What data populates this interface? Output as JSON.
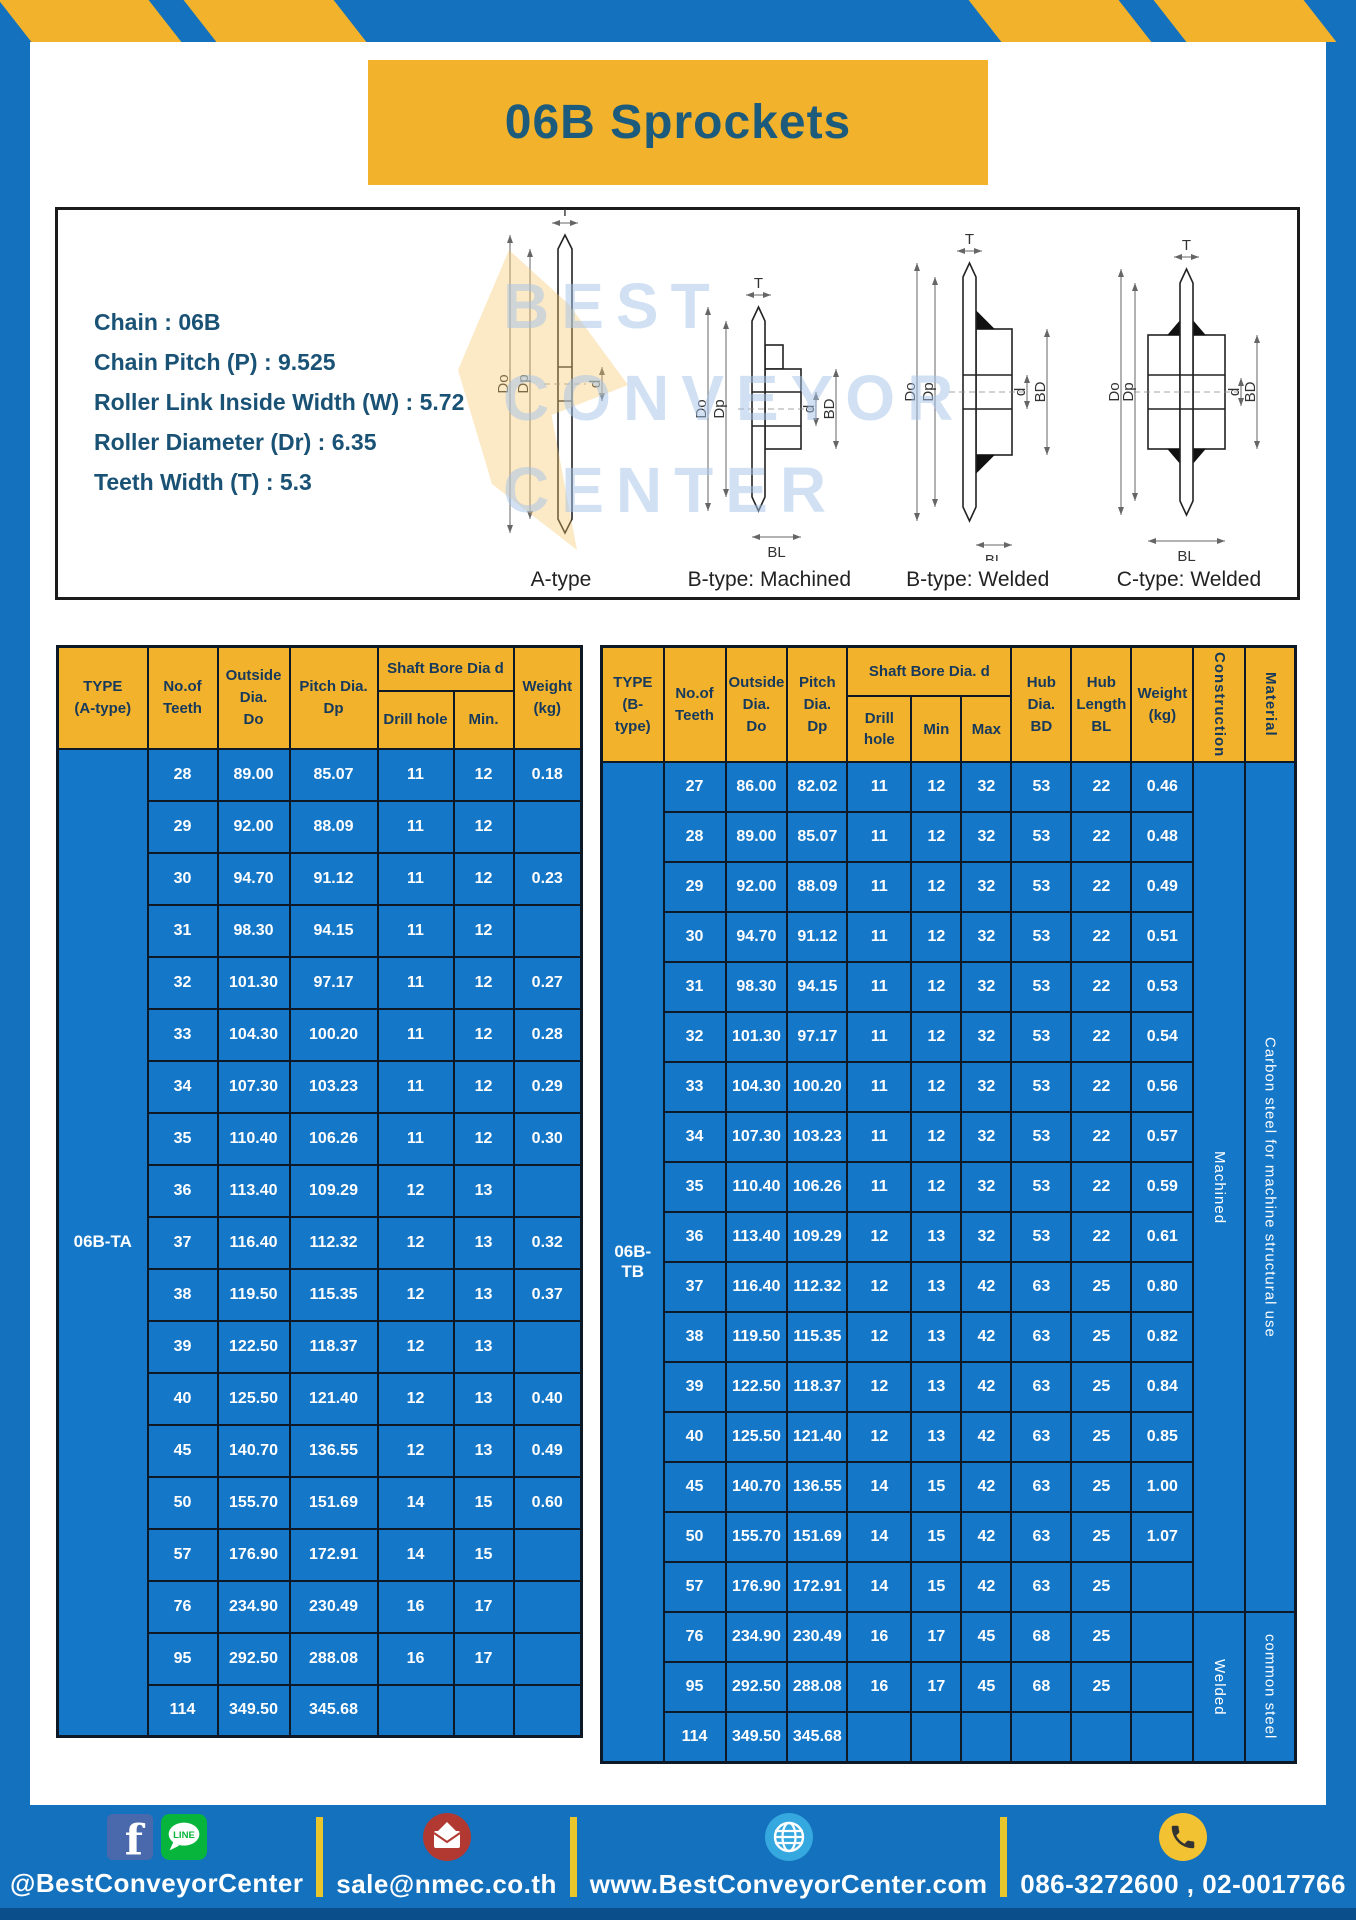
{
  "page_title": "06B Sprockets",
  "specs": "Chain : 06B\nChain Pitch (P) : 9.525\nRoller Link Inside Width (W) : 5.72\nRoller Diameter (Dr) : 6.35\nTeeth Width (T) : 5.3",
  "watermark": "BEST\nCONVEYOR\nCENTER",
  "dims": {
    "t": "T",
    "outside": "Do",
    "pitch": "Dp",
    "bore": "d",
    "hub_dia": "BD",
    "hub_len": "BL"
  },
  "diagrams": [
    {
      "label": "A-type",
      "style": "plain"
    },
    {
      "label": "B-type: Machined",
      "style": "machined"
    },
    {
      "label": "B-type: Welded",
      "style": "welded"
    },
    {
      "label": "C-type: Welded",
      "style": "welded-sym"
    }
  ],
  "table_a": {
    "header": {
      "type": "TYPE\n(A-type)",
      "teeth": "No.of\nTeeth",
      "outside": "Outside\nDia.\nDo",
      "pitch": "Pitch Dia.\nDp",
      "shaft_bore": "Shaft Bore Dia d",
      "drill": "Drill hole",
      "min": "Min.",
      "weight": "Weight\n(kg)"
    },
    "type_label": "06B-TA",
    "rows": [
      [
        "28",
        "89.00",
        "85.07",
        "11",
        "12",
        "0.18"
      ],
      [
        "29",
        "92.00",
        "88.09",
        "11",
        "12",
        ""
      ],
      [
        "30",
        "94.70",
        "91.12",
        "11",
        "12",
        "0.23"
      ],
      [
        "31",
        "98.30",
        "94.15",
        "11",
        "12",
        ""
      ],
      [
        "32",
        "101.30",
        "97.17",
        "11",
        "12",
        "0.27"
      ],
      [
        "33",
        "104.30",
        "100.20",
        "11",
        "12",
        "0.28"
      ],
      [
        "34",
        "107.30",
        "103.23",
        "11",
        "12",
        "0.29"
      ],
      [
        "35",
        "110.40",
        "106.26",
        "11",
        "12",
        "0.30"
      ],
      [
        "36",
        "113.40",
        "109.29",
        "12",
        "13",
        ""
      ],
      [
        "37",
        "116.40",
        "112.32",
        "12",
        "13",
        "0.32"
      ],
      [
        "38",
        "119.50",
        "115.35",
        "12",
        "13",
        "0.37"
      ],
      [
        "39",
        "122.50",
        "118.37",
        "12",
        "13",
        ""
      ],
      [
        "40",
        "125.50",
        "121.40",
        "12",
        "13",
        "0.40"
      ],
      [
        "45",
        "140.70",
        "136.55",
        "12",
        "13",
        "0.49"
      ],
      [
        "50",
        "155.70",
        "151.69",
        "14",
        "15",
        "0.60"
      ],
      [
        "57",
        "176.90",
        "172.91",
        "14",
        "15",
        ""
      ],
      [
        "76",
        "234.90",
        "230.49",
        "16",
        "17",
        ""
      ],
      [
        "95",
        "292.50",
        "288.08",
        "16",
        "17",
        ""
      ],
      [
        "114",
        "349.50",
        "345.68",
        "",
        "",
        ""
      ]
    ]
  },
  "table_b": {
    "header": {
      "type": "TYPE\n(B-type)",
      "teeth": "No.of\nTeeth",
      "outside": "Outside\nDia.\nDo",
      "pitch": "Pitch\nDia.\nDp",
      "shaft_bore": "Shaft Bore Dia. d",
      "drill": "Drill hole",
      "min": "Min",
      "max": "Max",
      "hub_dia": "Hub\nDia.\nBD",
      "hub_len": "Hub\nLength\nBL",
      "weight": "Weight\n(kg)",
      "construction": "Construction",
      "material": "Material"
    },
    "type_label": "06B-TB",
    "rows": [
      [
        "27",
        "86.00",
        "82.02",
        "11",
        "12",
        "32",
        "53",
        "22",
        "0.46"
      ],
      [
        "28",
        "89.00",
        "85.07",
        "11",
        "12",
        "32",
        "53",
        "22",
        "0.48"
      ],
      [
        "29",
        "92.00",
        "88.09",
        "11",
        "12",
        "32",
        "53",
        "22",
        "0.49"
      ],
      [
        "30",
        "94.70",
        "91.12",
        "11",
        "12",
        "32",
        "53",
        "22",
        "0.51"
      ],
      [
        "31",
        "98.30",
        "94.15",
        "11",
        "12",
        "32",
        "53",
        "22",
        "0.53"
      ],
      [
        "32",
        "101.30",
        "97.17",
        "11",
        "12",
        "32",
        "53",
        "22",
        "0.54"
      ],
      [
        "33",
        "104.30",
        "100.20",
        "11",
        "12",
        "32",
        "53",
        "22",
        "0.56"
      ],
      [
        "34",
        "107.30",
        "103.23",
        "11",
        "12",
        "32",
        "53",
        "22",
        "0.57"
      ],
      [
        "35",
        "110.40",
        "106.26",
        "11",
        "12",
        "32",
        "53",
        "22",
        "0.59"
      ],
      [
        "36",
        "113.40",
        "109.29",
        "12",
        "13",
        "32",
        "53",
        "22",
        "0.61"
      ],
      [
        "37",
        "116.40",
        "112.32",
        "12",
        "13",
        "42",
        "63",
        "25",
        "0.80"
      ],
      [
        "38",
        "119.50",
        "115.35",
        "12",
        "13",
        "42",
        "63",
        "25",
        "0.82"
      ],
      [
        "39",
        "122.50",
        "118.37",
        "12",
        "13",
        "42",
        "63",
        "25",
        "0.84"
      ],
      [
        "40",
        "125.50",
        "121.40",
        "12",
        "13",
        "42",
        "63",
        "25",
        "0.85"
      ],
      [
        "45",
        "140.70",
        "136.55",
        "14",
        "15",
        "42",
        "63",
        "25",
        "1.00"
      ],
      [
        "50",
        "155.70",
        "151.69",
        "14",
        "15",
        "42",
        "63",
        "25",
        "1.07"
      ],
      [
        "57",
        "176.90",
        "172.91",
        "14",
        "15",
        "42",
        "63",
        "25",
        ""
      ],
      [
        "76",
        "234.90",
        "230.49",
        "16",
        "17",
        "45",
        "68",
        "25",
        ""
      ],
      [
        "95",
        "292.50",
        "288.08",
        "16",
        "17",
        "45",
        "68",
        "25",
        ""
      ],
      [
        "114",
        "349.50",
        "345.68",
        "",
        "",
        "",
        "",
        "",
        ""
      ]
    ],
    "construction_spans": [
      {
        "label": "Machined",
        "from": 0,
        "count": 17
      },
      {
        "label": "Welded",
        "from": 17,
        "count": 3
      }
    ],
    "material_spans": [
      {
        "label": "Carbon steel for machine structural use",
        "from": 0,
        "count": 17
      },
      {
        "label": "common steel",
        "from": 17,
        "count": 3
      }
    ]
  },
  "footer": {
    "line_label": "LINE",
    "items": [
      {
        "icon": "facebook-line",
        "text": "@BestConveyorCenter"
      },
      {
        "icon": "email",
        "text": "sale@nmec.co.th"
      },
      {
        "icon": "globe",
        "text": "www.BestConveyorCenter.com"
      },
      {
        "icon": "phone",
        "text": "086-3272600 , 02-0017766"
      }
    ]
  },
  "colors": {
    "page_blue": "#1471bd",
    "cell_blue": "#1577c8",
    "accent_yellow": "#f2b22c",
    "border_navy": "#0d1926",
    "text_navy": "#1d5b7d"
  }
}
